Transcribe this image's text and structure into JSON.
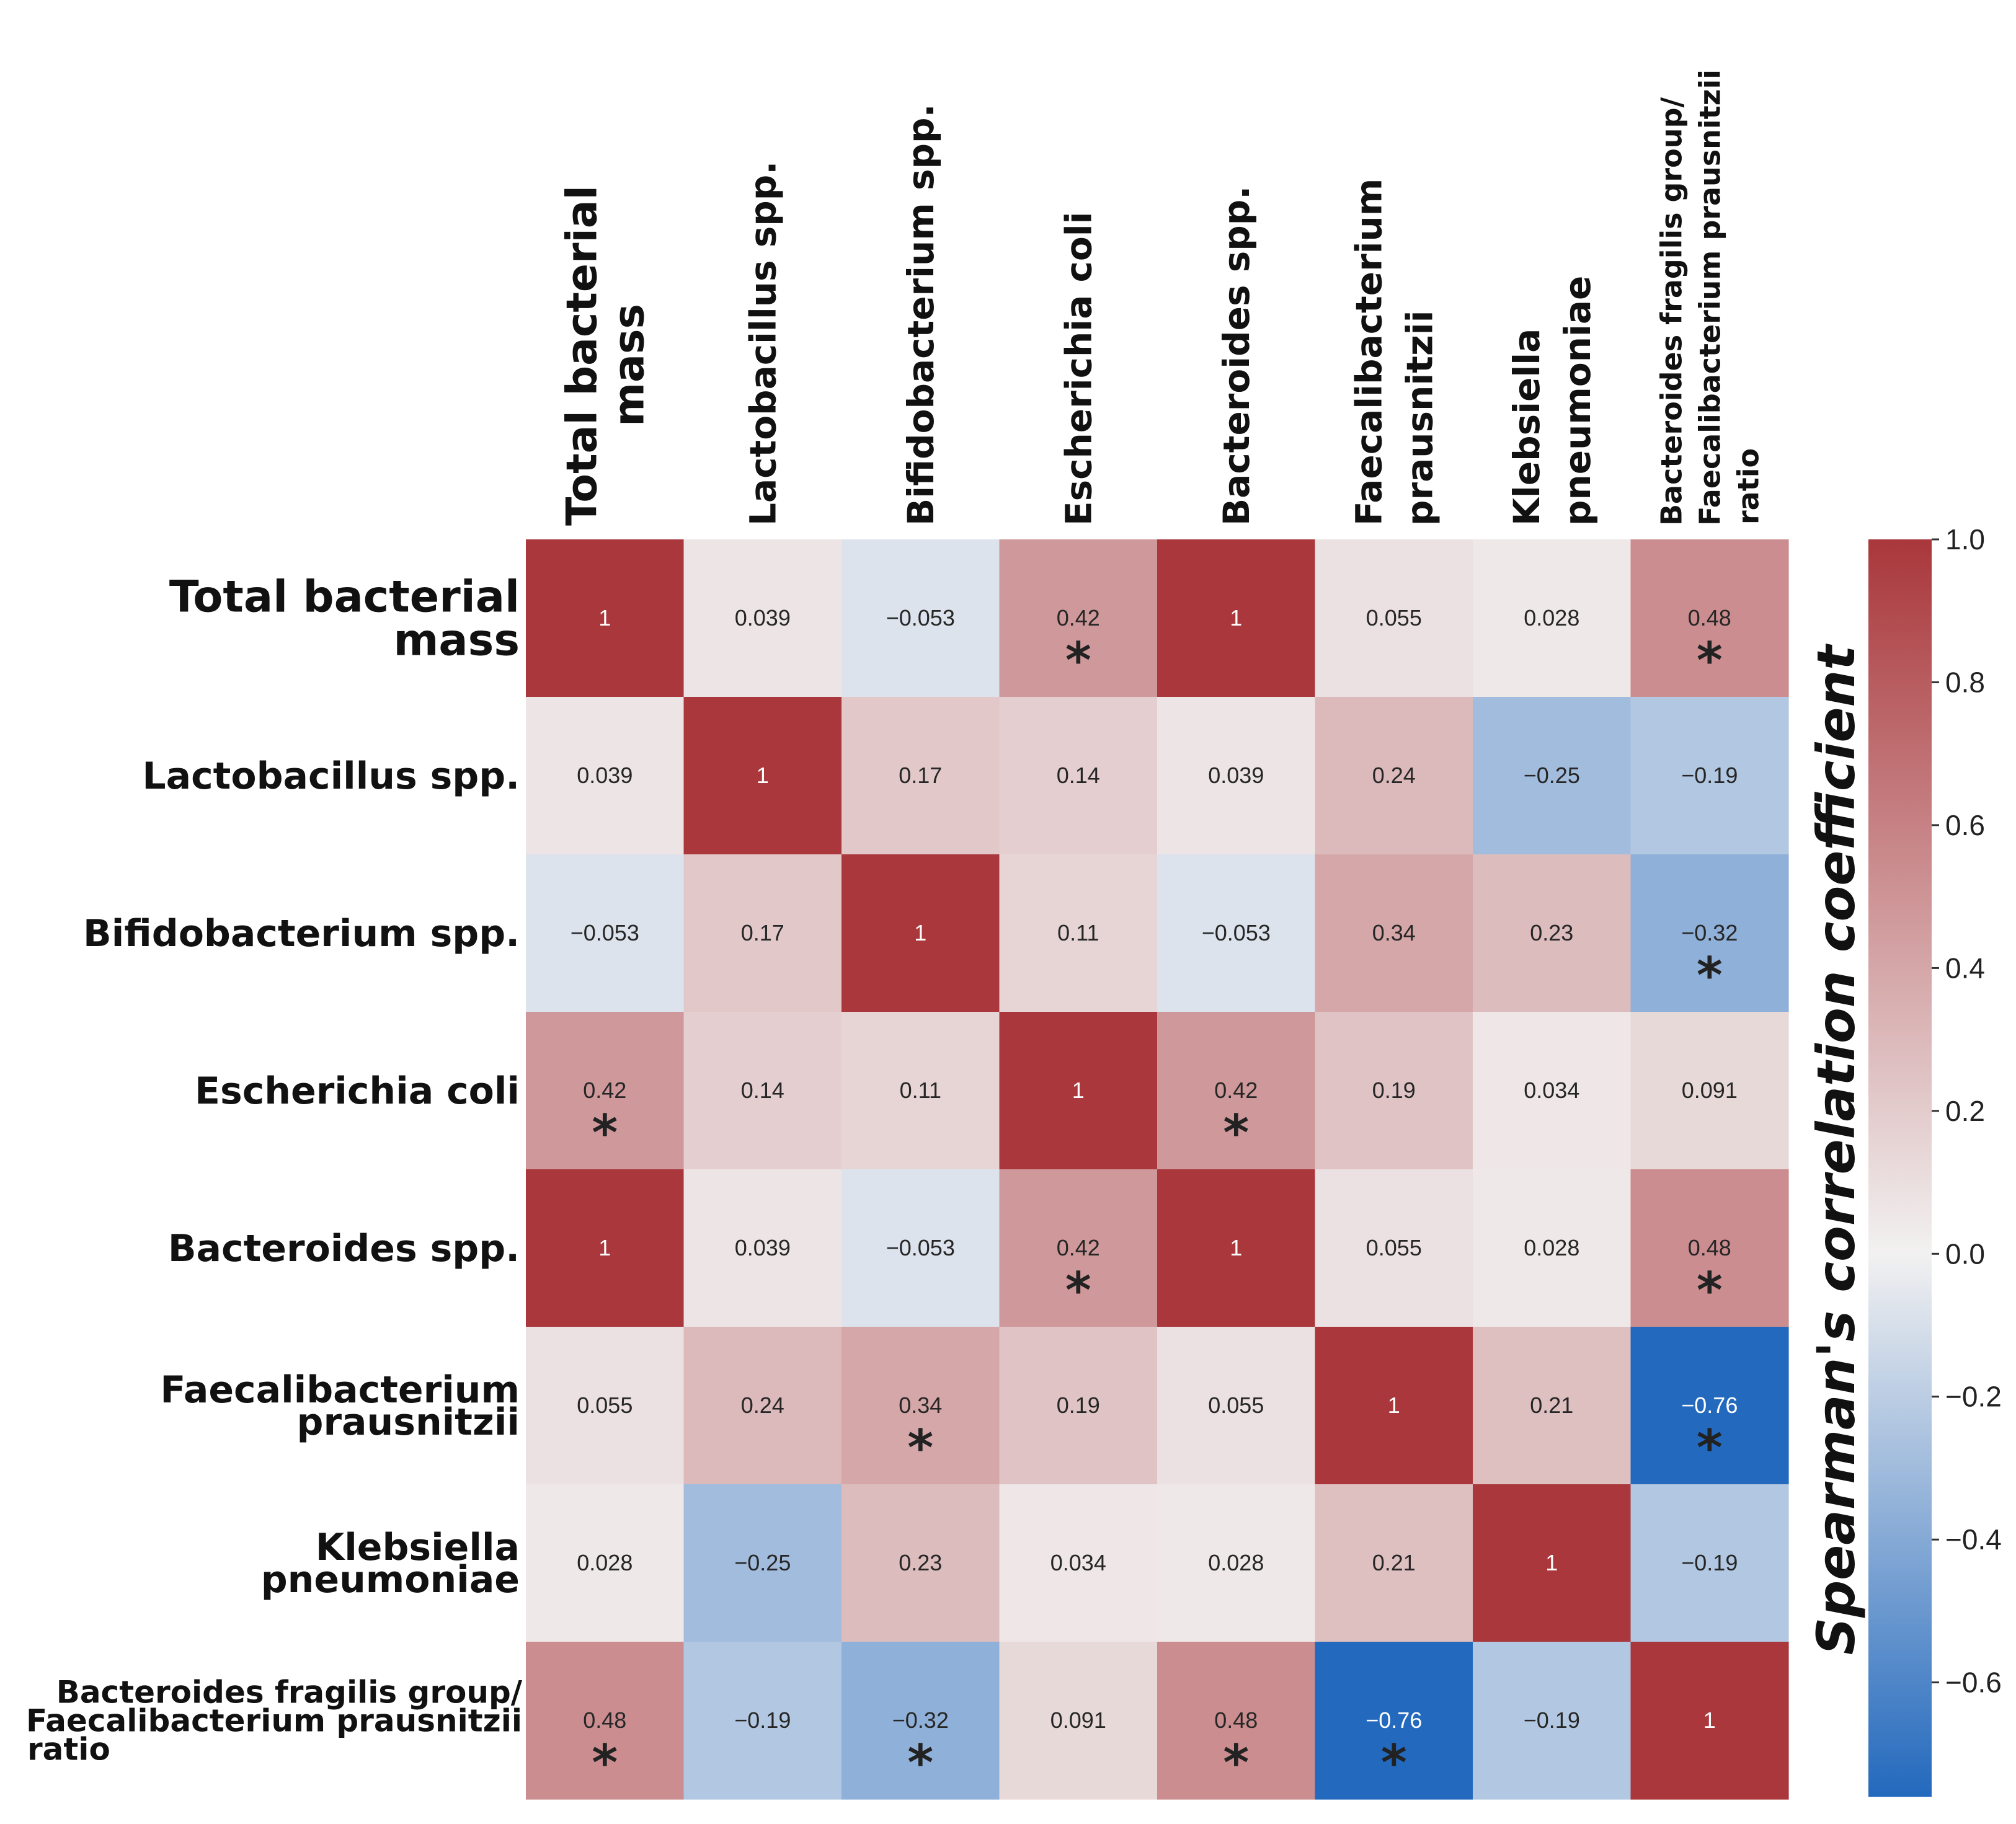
{
  "chart_data": {
    "type": "heatmap",
    "row_labels": [
      [
        "Total bacterial",
        "mass"
      ],
      [
        "Lactobacillus  spp."
      ],
      [
        "Bifidobacterium  spp."
      ],
      [
        "Escherichia  coli"
      ],
      [
        "Bacteroides spp."
      ],
      [
        "Faecalibacterium",
        "prausnitzii"
      ],
      [
        "Klebsiella",
        "pneumoniae"
      ],
      [
        "Bacteroides fragilis group/",
        "Faecalibacterium prausnitzii",
        "ratio"
      ]
    ],
    "col_labels": [
      [
        "Total bacterial",
        "mass"
      ],
      [
        "Lactobacillus  spp."
      ],
      [
        "Bifidobacterium  spp."
      ],
      [
        "Escherichia  coli"
      ],
      [
        "Bacteroides spp."
      ],
      [
        "Faecalibacterium",
        "prausnitzii"
      ],
      [
        "Klebsiella",
        "pneumoniae"
      ],
      [
        "Bacteroides fragilis group/",
        "Faecalibacterium prausnitzii",
        "ratio"
      ]
    ],
    "values": [
      [
        1,
        0.039,
        -0.053,
        0.42,
        1,
        0.055,
        0.028,
        0.48
      ],
      [
        0.039,
        1,
        0.17,
        0.14,
        0.039,
        0.24,
        -0.25,
        -0.19
      ],
      [
        -0.053,
        0.17,
        1,
        0.11,
        -0.053,
        0.34,
        0.23,
        -0.32
      ],
      [
        0.42,
        0.14,
        0.11,
        1,
        0.42,
        0.19,
        0.034,
        0.091
      ],
      [
        1,
        0.039,
        -0.053,
        0.42,
        1,
        0.055,
        0.028,
        0.48
      ],
      [
        0.055,
        0.24,
        0.34,
        0.19,
        0.055,
        1,
        0.21,
        -0.76
      ],
      [
        0.028,
        -0.25,
        0.23,
        0.034,
        0.028,
        0.21,
        1,
        -0.19
      ],
      [
        0.48,
        -0.19,
        -0.32,
        0.091,
        0.48,
        -0.76,
        -0.19,
        1
      ]
    ],
    "display_values": [
      [
        "1",
        "0.039",
        "−0.053",
        "0.42",
        "1",
        "0.055",
        "0.028",
        "0.48"
      ],
      [
        "0.039",
        "1",
        "0.17",
        "0.14",
        "0.039",
        "0.24",
        "−0.25",
        "−0.19"
      ],
      [
        "−0.053",
        "0.17",
        "1",
        "0.11",
        "−0.053",
        "0.34",
        "0.23",
        "−0.32"
      ],
      [
        "0.42",
        "0.14",
        "0.11",
        "1",
        "0.42",
        "0.19",
        "0.034",
        "0.091"
      ],
      [
        "1",
        "0.039",
        "−0.053",
        "0.42",
        "1",
        "0.055",
        "0.028",
        "0.48"
      ],
      [
        "0.055",
        "0.24",
        "0.34",
        "0.19",
        "0.055",
        "1",
        "0.21",
        "−0.76"
      ],
      [
        "0.028",
        "−0.25",
        "0.23",
        "0.034",
        "0.028",
        "0.21",
        "1",
        "−0.19"
      ],
      [
        "0.48",
        "−0.19",
        "−0.32",
        "0.091",
        "0.48",
        "−0.76",
        "−0.19",
        "1"
      ]
    ],
    "significant": [
      [
        false,
        false,
        false,
        true,
        false,
        false,
        false,
        true
      ],
      [
        false,
        false,
        false,
        false,
        false,
        false,
        false,
        false
      ],
      [
        false,
        false,
        false,
        false,
        false,
        false,
        false,
        true
      ],
      [
        true,
        false,
        false,
        false,
        true,
        false,
        false,
        false
      ],
      [
        false,
        false,
        false,
        true,
        false,
        false,
        false,
        true
      ],
      [
        false,
        false,
        true,
        false,
        false,
        false,
        false,
        true
      ],
      [
        false,
        false,
        false,
        false,
        false,
        false,
        false,
        false
      ],
      [
        true,
        false,
        true,
        false,
        true,
        true,
        false,
        false
      ]
    ],
    "significance_marker": "*",
    "colorbar": {
      "title": "Spearman's correlation coefficient",
      "vmin": -0.76,
      "vmax": 1.0,
      "ticks": [
        1.0,
        0.8,
        0.6,
        0.4,
        0.2,
        0.0,
        -0.2,
        -0.4,
        -0.6
      ],
      "tick_labels": [
        "1.0",
        "0.8",
        "0.6",
        "0.4",
        "0.2",
        "0.0",
        "−0.2",
        "−0.4",
        "−0.6"
      ],
      "colormap": "vlag",
      "stops": [
        "#2369bd",
        "#f2f1f1",
        "#a9373b"
      ]
    }
  }
}
